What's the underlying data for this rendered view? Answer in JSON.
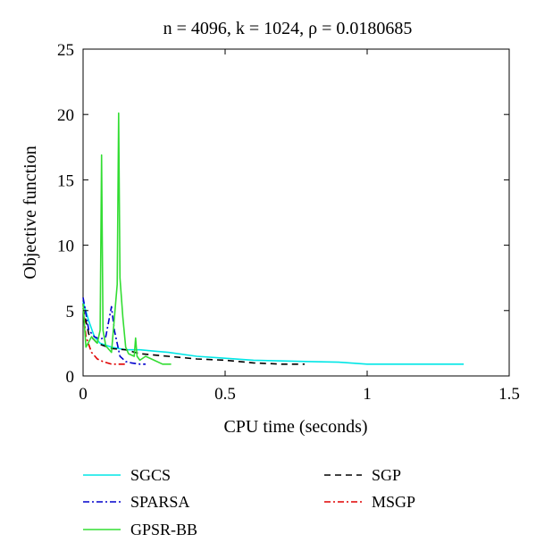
{
  "chart_data": {
    "type": "line",
    "title": "n = 4096, k = 1024, ρ = 0.0180685",
    "xlabel": "CPU time (seconds)",
    "ylabel": "Objective function",
    "xlim": [
      0,
      1.5
    ],
    "ylim": [
      0,
      25
    ],
    "xticks": [
      "0",
      "0.5",
      "1",
      "1.5"
    ],
    "yticks": [
      "0",
      "5",
      "10",
      "15",
      "20",
      "25"
    ],
    "grid": false,
    "legend_position": "below",
    "series": [
      {
        "name": "SGCS",
        "color": "#00e6e6",
        "dash": "solid",
        "x": [
          0,
          0.02,
          0.04,
          0.06,
          0.1,
          0.15,
          0.2,
          0.25,
          0.3,
          0.4,
          0.5,
          0.6,
          0.7,
          0.8,
          0.9,
          1.0,
          1.1,
          1.2,
          1.34
        ],
        "y": [
          5.7,
          4.2,
          3.0,
          2.5,
          2.2,
          2.0,
          2.0,
          1.9,
          1.8,
          1.5,
          1.35,
          1.2,
          1.15,
          1.1,
          1.05,
          0.9,
          0.9,
          0.9,
          0.9
        ]
      },
      {
        "name": "SGP",
        "color": "#000000",
        "dash": "dashed",
        "x": [
          0,
          0.02,
          0.05,
          0.1,
          0.15,
          0.2,
          0.3,
          0.4,
          0.5,
          0.6,
          0.7,
          0.78
        ],
        "y": [
          5.2,
          3.2,
          2.5,
          2.1,
          2.0,
          1.7,
          1.5,
          1.3,
          1.2,
          1.0,
          0.9,
          0.9
        ]
      },
      {
        "name": "SPARSA",
        "color": "#0000cc",
        "dash": "dashdot",
        "x": [
          0,
          0.02,
          0.04,
          0.06,
          0.08,
          0.1,
          0.11,
          0.13,
          0.15,
          0.17,
          0.2,
          0.22
        ],
        "y": [
          6.0,
          3.5,
          3.0,
          2.8,
          3.0,
          5.3,
          3.5,
          1.5,
          1.1,
          1.0,
          0.9,
          0.9
        ]
      },
      {
        "name": "MSGP",
        "color": "#e00000",
        "dash": "dashdot",
        "x": [
          0,
          0.01,
          0.03,
          0.05,
          0.07,
          0.1,
          0.15
        ],
        "y": [
          5.5,
          3.0,
          1.8,
          1.3,
          1.1,
          0.9,
          0.9
        ]
      },
      {
        "name": "GPSR-BB",
        "color": "#33dd33",
        "dash": "solid",
        "x": [
          0,
          0.01,
          0.03,
          0.05,
          0.06,
          0.065,
          0.07,
          0.08,
          0.1,
          0.12,
          0.125,
          0.13,
          0.14,
          0.15,
          0.16,
          0.18,
          0.185,
          0.19,
          0.2,
          0.22,
          0.25,
          0.28,
          0.31
        ],
        "y": [
          5.5,
          2.2,
          3.0,
          2.5,
          3.5,
          16.9,
          3.5,
          2.3,
          1.8,
          7.0,
          20.1,
          7.5,
          4.5,
          2.2,
          1.7,
          1.5,
          2.9,
          1.5,
          1.2,
          1.5,
          1.2,
          0.9,
          0.9
        ]
      }
    ],
    "legend": [
      {
        "series": 0,
        "label": "SGCS"
      },
      {
        "series": 1,
        "label": "SGP"
      },
      {
        "series": 2,
        "label": "SPARSA"
      },
      {
        "series": 3,
        "label": "MSGP"
      },
      {
        "series": 4,
        "label": "GPSR-BB"
      }
    ]
  }
}
